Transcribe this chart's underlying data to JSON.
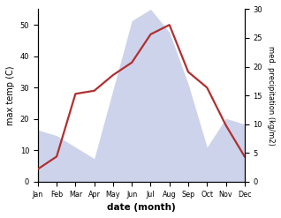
{
  "months": [
    "Jan",
    "Feb",
    "Mar",
    "Apr",
    "May",
    "Jun",
    "Jul",
    "Aug",
    "Sep",
    "Oct",
    "Nov",
    "Dec"
  ],
  "temp": [
    4,
    8,
    28,
    29,
    34,
    38,
    47,
    50,
    35,
    30,
    18,
    8
  ],
  "precip": [
    9,
    8,
    6,
    4,
    16,
    28,
    30,
    26,
    17,
    6,
    11,
    10
  ],
  "temp_color": "#b03030",
  "precip_fill_color": "#c5cce8",
  "ylabel_left": "max temp (C)",
  "ylabel_right": "med. precipitation (kg/m2)",
  "xlabel": "date (month)",
  "ylim_left": [
    0,
    55
  ],
  "ylim_right": [
    0,
    30
  ],
  "bg_color": "#ffffff",
  "temp_linewidth": 1.6
}
